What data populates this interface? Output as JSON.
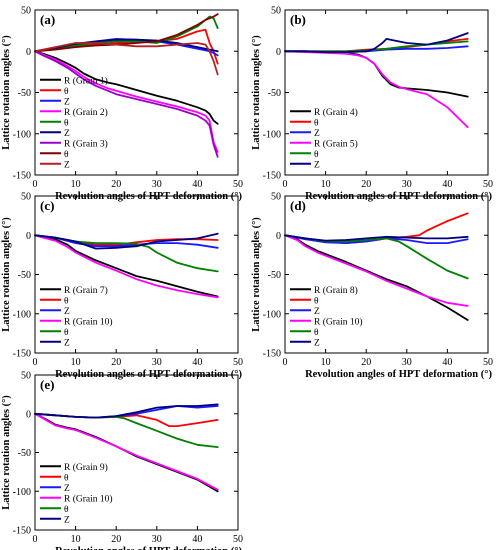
{
  "figure": {
    "ylabel": "Lattice rotation angles (°)",
    "xlabel": "Revolution angles of HPT deformation (°)"
  },
  "chart_data": [
    {
      "type": "line",
      "panel": "(a)",
      "xlim": [
        0,
        50
      ],
      "ylim": [
        -150,
        50
      ],
      "xticks": [
        0,
        10,
        20,
        30,
        40,
        50
      ],
      "yticks": [
        50,
        0,
        -50,
        -100,
        -150
      ],
      "legend_position": "bottom-left",
      "series": [
        {
          "name": "R (Grain 1)",
          "color": "#000000",
          "x": [
            0,
            2,
            5,
            8,
            10,
            12,
            15,
            18,
            20,
            25,
            30,
            35,
            40,
            42,
            43,
            44,
            45
          ],
          "y": [
            0,
            -3,
            -8,
            -15,
            -20,
            -27,
            -34,
            -38,
            -40,
            -47,
            -54,
            -60,
            -68,
            -72,
            -76,
            -84,
            -88
          ]
        },
        {
          "name": "θ",
          "color": "#ff0000",
          "x": [
            0,
            5,
            10,
            15,
            20,
            25,
            30,
            35,
            40,
            42,
            43,
            44,
            45
          ],
          "y": [
            0,
            3,
            6,
            8,
            10,
            12,
            12,
            15,
            24,
            26,
            10,
            0,
            -15
          ]
        },
        {
          "name": "Z",
          "color": "#1a1aff",
          "x": [
            0,
            5,
            10,
            15,
            20,
            25,
            30,
            35,
            40,
            42,
            43,
            44,
            45
          ],
          "y": [
            0,
            4,
            8,
            12,
            15,
            14,
            12,
            8,
            3,
            1,
            0,
            -2,
            -5
          ]
        },
        {
          "name": "R (Grain 2)",
          "color": "#ff00ff",
          "x": [
            0,
            2,
            5,
            8,
            10,
            12,
            15,
            18,
            20,
            25,
            30,
            35,
            40,
            42,
            43,
            44,
            45
          ],
          "y": [
            0,
            -4,
            -10,
            -18,
            -24,
            -31,
            -39,
            -45,
            -48,
            -55,
            -61,
            -67,
            -74,
            -78,
            -84,
            -110,
            -122
          ]
        },
        {
          "name": "θ",
          "color": "#008000",
          "x": [
            0,
            5,
            10,
            15,
            20,
            25,
            30,
            35,
            40,
            42,
            43,
            44,
            45
          ],
          "y": [
            0,
            3,
            7,
            10,
            12,
            12,
            10,
            18,
            30,
            38,
            42,
            40,
            28
          ]
        },
        {
          "name": "Z",
          "color": "#000080",
          "x": [
            0,
            5,
            10,
            15,
            20,
            25,
            30,
            35,
            40,
            42,
            43,
            44,
            45
          ],
          "y": [
            0,
            4,
            9,
            12,
            14,
            14,
            13,
            10,
            5,
            3,
            2,
            1,
            0
          ]
        },
        {
          "name": "R (Grain 3)",
          "color": "#9900cc",
          "x": [
            0,
            2,
            5,
            8,
            10,
            12,
            15,
            18,
            20,
            25,
            30,
            35,
            40,
            42,
            43,
            44,
            45
          ],
          "y": [
            0,
            -5,
            -12,
            -20,
            -27,
            -34,
            -42,
            -48,
            -52,
            -58,
            -64,
            -70,
            -78,
            -84,
            -90,
            -113,
            -128
          ]
        },
        {
          "name": "θ",
          "color": "#800000",
          "x": [
            0,
            5,
            10,
            15,
            20,
            25,
            30,
            35,
            40,
            42,
            43,
            44,
            45
          ],
          "y": [
            0,
            2,
            5,
            7,
            8,
            10,
            12,
            20,
            32,
            38,
            40,
            42,
            45
          ]
        },
        {
          "name": "Z",
          "color": "#b22222",
          "x": [
            0,
            5,
            10,
            15,
            20,
            25,
            30,
            35,
            40,
            42,
            43,
            44,
            45
          ],
          "y": [
            0,
            5,
            10,
            10,
            8,
            6,
            6,
            8,
            10,
            8,
            0,
            -12,
            -28
          ]
        }
      ]
    },
    {
      "type": "line",
      "panel": "(b)",
      "xlim": [
        0,
        50
      ],
      "ylim": [
        -150,
        50
      ],
      "xticks": [
        0,
        10,
        20,
        30,
        40,
        50
      ],
      "yticks": [
        50,
        0,
        -50,
        -100,
        -150
      ],
      "legend_position": "bottom-left",
      "series": [
        {
          "name": "R (Grain 4)",
          "color": "#000000",
          "x": [
            0,
            5,
            10,
            15,
            18,
            20,
            22,
            24,
            26,
            28,
            30,
            35,
            40,
            45
          ],
          "y": [
            0,
            0,
            -1,
            -2,
            -4,
            -8,
            -15,
            -30,
            -40,
            -44,
            -45,
            -47,
            -50,
            -55
          ]
        },
        {
          "name": "θ",
          "color": "#ff0000",
          "x": [
            0,
            5,
            10,
            15,
            20,
            25,
            30,
            35,
            40,
            45
          ],
          "y": [
            0,
            0,
            0,
            0,
            2,
            3,
            5,
            8,
            12,
            15
          ]
        },
        {
          "name": "Z",
          "color": "#1a1aff",
          "x": [
            0,
            5,
            10,
            15,
            20,
            25,
            30,
            35,
            40,
            45
          ],
          "y": [
            0,
            0,
            -1,
            -1,
            0,
            2,
            3,
            3,
            4,
            6
          ]
        },
        {
          "name": "R (Grain 5)",
          "color": "#ff00ff",
          "x": [
            0,
            5,
            10,
            15,
            18,
            20,
            22,
            24,
            26,
            28,
            30,
            35,
            40,
            45
          ],
          "y": [
            0,
            -1,
            -2,
            -3,
            -5,
            -8,
            -15,
            -28,
            -38,
            -43,
            -46,
            -52,
            -68,
            -92
          ]
        },
        {
          "name": "θ",
          "color": "#008000",
          "x": [
            0,
            5,
            10,
            15,
            20,
            25,
            30,
            35,
            40,
            45
          ],
          "y": [
            0,
            0,
            0,
            0,
            1,
            3,
            6,
            8,
            10,
            12
          ]
        },
        {
          "name": "Z",
          "color": "#000080",
          "x": [
            0,
            5,
            10,
            15,
            20,
            22,
            24,
            25,
            26,
            28,
            30,
            35,
            40,
            45
          ],
          "y": [
            0,
            0,
            -1,
            -1,
            0,
            3,
            10,
            15,
            14,
            12,
            10,
            8,
            13,
            22
          ]
        }
      ]
    },
    {
      "type": "line",
      "panel": "(c)",
      "xlim": [
        0,
        50
      ],
      "ylim": [
        -150,
        50
      ],
      "xticks": [
        0,
        10,
        20,
        30,
        40,
        50
      ],
      "yticks": [
        50,
        0,
        -50,
        -100,
        -150
      ],
      "legend_position": "bottom-left",
      "series": [
        {
          "name": "R (Grain 7)",
          "color": "#000000",
          "x": [
            0,
            2,
            5,
            8,
            10,
            15,
            20,
            25,
            30,
            35,
            40,
            45
          ],
          "y": [
            0,
            -2,
            -5,
            -12,
            -20,
            -32,
            -42,
            -52,
            -58,
            -65,
            -72,
            -78
          ]
        },
        {
          "name": "θ",
          "color": "#ff0000",
          "x": [
            0,
            5,
            10,
            15,
            20,
            25,
            30,
            35,
            40,
            45
          ],
          "y": [
            0,
            -3,
            -8,
            -12,
            -12,
            -9,
            -6,
            -5,
            -5,
            -6
          ]
        },
        {
          "name": "Z",
          "color": "#1a1aff",
          "x": [
            0,
            5,
            10,
            15,
            20,
            25,
            30,
            35,
            40,
            45
          ],
          "y": [
            0,
            -3,
            -10,
            -14,
            -14,
            -12,
            -10,
            -10,
            -12,
            -16
          ]
        },
        {
          "name": "R (Grain 10)",
          "color": "#ff00ff",
          "x": [
            0,
            2,
            5,
            8,
            10,
            15,
            20,
            25,
            30,
            35,
            40,
            45
          ],
          "y": [
            0,
            -3,
            -7,
            -15,
            -22,
            -35,
            -45,
            -56,
            -64,
            -70,
            -75,
            -79
          ]
        },
        {
          "name": "θ",
          "color": "#008000",
          "x": [
            0,
            5,
            10,
            15,
            20,
            25,
            28,
            30,
            35,
            40,
            45
          ],
          "y": [
            0,
            -3,
            -8,
            -10,
            -10,
            -11,
            -15,
            -22,
            -35,
            -42,
            -46
          ]
        },
        {
          "name": "Z",
          "color": "#000080",
          "x": [
            0,
            5,
            10,
            15,
            20,
            25,
            30,
            35,
            40,
            45
          ],
          "y": [
            0,
            -3,
            -8,
            -17,
            -16,
            -14,
            -8,
            -6,
            -4,
            2
          ]
        }
      ]
    },
    {
      "type": "line",
      "panel": "(d)",
      "xlim": [
        0,
        50
      ],
      "ylim": [
        -150,
        50
      ],
      "xticks": [
        0,
        10,
        20,
        30,
        40,
        50
      ],
      "yticks": [
        50,
        0,
        -50,
        -100,
        -150
      ],
      "legend_position": "bottom-left",
      "series": [
        {
          "name": "R (Grain 8)",
          "color": "#000000",
          "x": [
            0,
            3,
            5,
            8,
            10,
            15,
            20,
            25,
            30,
            35,
            40,
            45
          ],
          "y": [
            0,
            -5,
            -12,
            -20,
            -24,
            -34,
            -45,
            -56,
            -65,
            -78,
            -92,
            -108
          ]
        },
        {
          "name": "θ",
          "color": "#ff0000",
          "x": [
            0,
            5,
            10,
            15,
            20,
            25,
            30,
            33,
            35,
            40,
            45
          ],
          "y": [
            0,
            -4,
            -8,
            -10,
            -8,
            -4,
            -2,
            0,
            6,
            18,
            28
          ]
        },
        {
          "name": "Z",
          "color": "#1a1aff",
          "x": [
            0,
            5,
            10,
            15,
            20,
            25,
            30,
            35,
            40,
            45
          ],
          "y": [
            0,
            -5,
            -9,
            -10,
            -8,
            -4,
            -6,
            -10,
            -10,
            -5
          ]
        },
        {
          "name": "R (Grain 10)",
          "color": "#ff00ff",
          "x": [
            0,
            3,
            5,
            8,
            10,
            15,
            20,
            25,
            30,
            35,
            40,
            45
          ],
          "y": [
            0,
            -6,
            -14,
            -22,
            -26,
            -36,
            -46,
            -58,
            -68,
            -78,
            -86,
            -90
          ]
        },
        {
          "name": "θ",
          "color": "#008000",
          "x": [
            0,
            5,
            10,
            15,
            20,
            25,
            28,
            30,
            35,
            40,
            45
          ],
          "y": [
            0,
            -4,
            -8,
            -8,
            -6,
            -4,
            -8,
            -14,
            -30,
            -45,
            -55
          ]
        },
        {
          "name": "Z",
          "color": "#000080",
          "x": [
            0,
            5,
            10,
            15,
            20,
            25,
            30,
            35,
            40,
            45
          ],
          "y": [
            0,
            -4,
            -7,
            -6,
            -4,
            -2,
            -3,
            -4,
            -4,
            -2
          ]
        }
      ]
    },
    {
      "type": "line",
      "panel": "(e)",
      "xlim": [
        0,
        50
      ],
      "ylim": [
        -150,
        50
      ],
      "xticks": [
        0,
        10,
        20,
        30,
        40,
        50
      ],
      "yticks": [
        50,
        0,
        -50,
        -100,
        -150
      ],
      "legend_position": "bottom-left",
      "series": [
        {
          "name": "R (Grain 9)",
          "color": "#000000",
          "x": [
            0,
            3,
            5,
            8,
            10,
            15,
            20,
            25,
            30,
            35,
            40,
            45
          ],
          "y": [
            0,
            -8,
            -14,
            -18,
            -20,
            -30,
            -42,
            -55,
            -65,
            -75,
            -85,
            -100
          ]
        },
        {
          "name": "θ",
          "color": "#ff0000",
          "x": [
            0,
            5,
            10,
            15,
            20,
            25,
            30,
            33,
            35,
            40,
            45
          ],
          "y": [
            0,
            -2,
            -4,
            -5,
            -4,
            -2,
            -8,
            -16,
            -16,
            -12,
            -8
          ]
        },
        {
          "name": "Z",
          "color": "#1a1aff",
          "x": [
            0,
            5,
            10,
            15,
            20,
            25,
            30,
            35,
            40,
            45
          ],
          "y": [
            0,
            -2,
            -4,
            -5,
            -3,
            0,
            5,
            10,
            8,
            10
          ]
        },
        {
          "name": "R (Grain 10)",
          "color": "#ff00ff",
          "x": [
            0,
            3,
            5,
            8,
            10,
            15,
            20,
            25,
            30,
            35,
            40,
            45
          ],
          "y": [
            0,
            -9,
            -15,
            -19,
            -21,
            -31,
            -42,
            -54,
            -64,
            -74,
            -84,
            -98
          ]
        },
        {
          "name": "θ",
          "color": "#008000",
          "x": [
            0,
            5,
            10,
            15,
            20,
            22,
            25,
            30,
            35,
            40,
            45
          ],
          "y": [
            0,
            -2,
            -4,
            -5,
            -4,
            -6,
            -12,
            -22,
            -32,
            -40,
            -43
          ]
        },
        {
          "name": "Z",
          "color": "#000080",
          "x": [
            0,
            5,
            10,
            15,
            20,
            25,
            30,
            35,
            40,
            45
          ],
          "y": [
            0,
            -2,
            -4,
            -5,
            -3,
            2,
            8,
            10,
            10,
            12
          ]
        }
      ]
    }
  ]
}
